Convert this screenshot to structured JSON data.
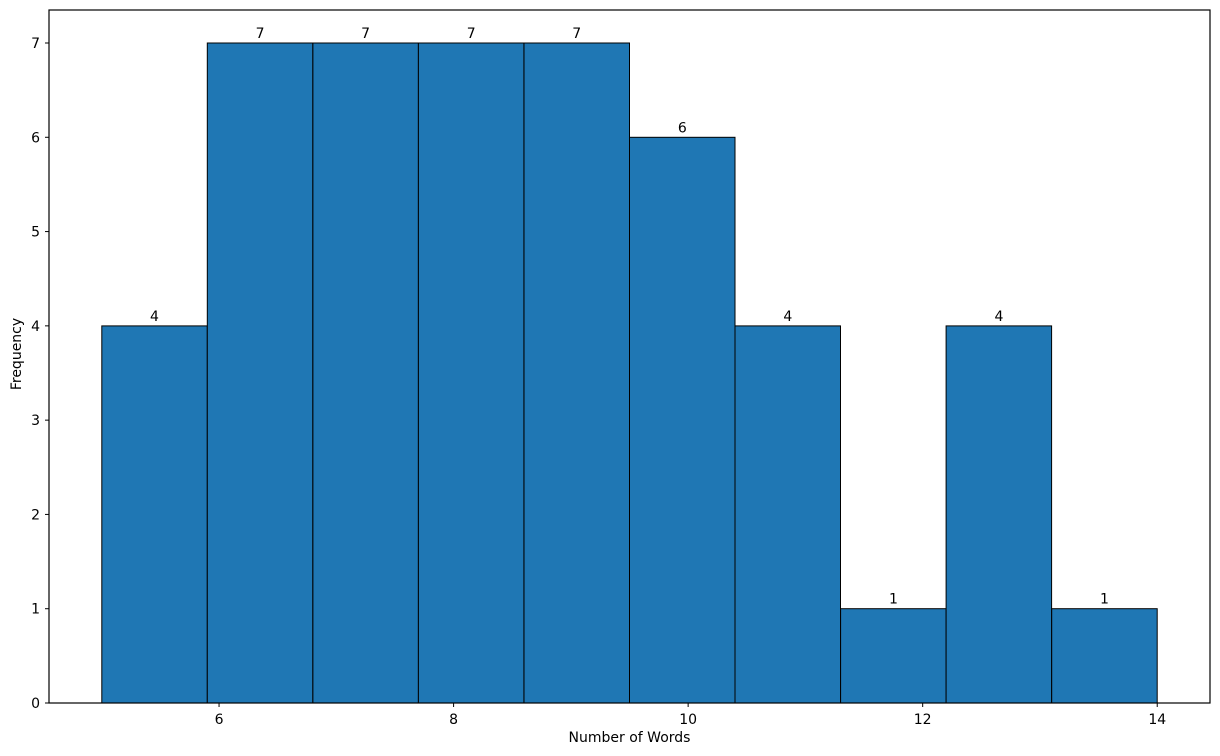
{
  "chart_data": {
    "type": "bar",
    "subtype": "histogram",
    "title": "",
    "xlabel": "Number of Words",
    "ylabel": "Frequency",
    "bin_edges": [
      5.0,
      5.9,
      6.8,
      7.7,
      8.6,
      9.5,
      10.4,
      11.3,
      12.2,
      13.1,
      14.0
    ],
    "values": [
      4,
      7,
      7,
      7,
      7,
      6,
      4,
      1,
      4,
      1
    ],
    "bar_labels": [
      "4",
      "7",
      "7",
      "7",
      "7",
      "6",
      "4",
      "1",
      "4",
      "1"
    ],
    "x_ticks": [
      6,
      8,
      10,
      12,
      14
    ],
    "y_ticks": [
      0,
      1,
      2,
      3,
      4,
      5,
      6,
      7
    ],
    "xlim": [
      4.55,
      14.45
    ],
    "ylim": [
      0,
      7.35
    ],
    "grid": false,
    "legend": null,
    "bar_color": "#1f77b4",
    "bar_edge_color": "#000000",
    "axis_color": "#000000",
    "text_color": "#000000",
    "background_color": "#ffffff"
  }
}
